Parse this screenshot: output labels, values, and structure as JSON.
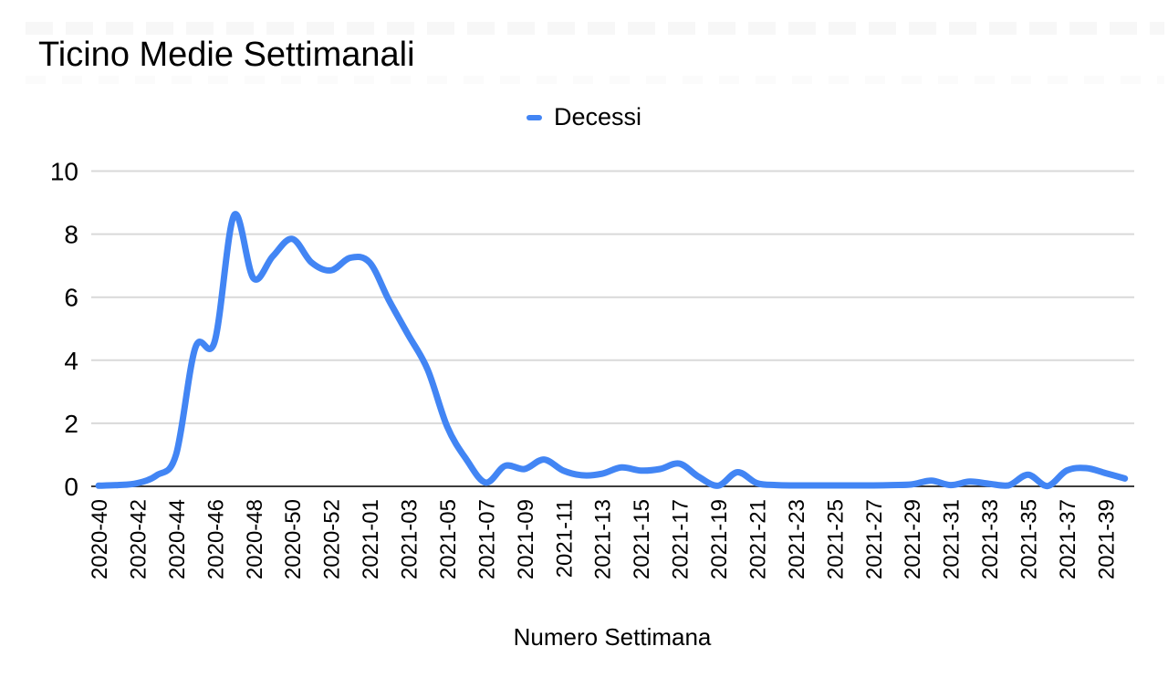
{
  "title": "Ticino Medie Settimanali",
  "legend": {
    "label": "Decessi",
    "marker_color": "#4285f4",
    "position": "top"
  },
  "x_axis_title": "Numero Settimana",
  "colors": {
    "line": "#4285f4",
    "grid": "#d9d9d9",
    "axis": "#3c3c3c",
    "text": "#000000",
    "background": "#ffffff"
  },
  "chart_data": {
    "type": "line",
    "smooth": true,
    "grid": true,
    "legend_position": "top",
    "title": "Ticino Medie Settimanali",
    "xlabel": "Numero Settimana",
    "ylabel": "",
    "ylim": [
      0,
      10
    ],
    "yticks": [
      0,
      2,
      4,
      6,
      8,
      10
    ],
    "x_tick_every": 2,
    "x": [
      "2020-40",
      "2020-41",
      "2020-42",
      "2020-43",
      "2020-44",
      "2020-45",
      "2020-46",
      "2020-47",
      "2020-48",
      "2020-49",
      "2020-50",
      "2020-51",
      "2020-52",
      "2020-53",
      "2021-01",
      "2021-02",
      "2021-03",
      "2021-04",
      "2021-05",
      "2021-06",
      "2021-07",
      "2021-08",
      "2021-09",
      "2021-10",
      "2021-11",
      "2021-12",
      "2021-13",
      "2021-14",
      "2021-15",
      "2021-16",
      "2021-17",
      "2021-18",
      "2021-19",
      "2021-20",
      "2021-21",
      "2021-22",
      "2021-23",
      "2021-24",
      "2021-25",
      "2021-26",
      "2021-27",
      "2021-28",
      "2021-29",
      "2021-30",
      "2021-31",
      "2021-32",
      "2021-33",
      "2021-34",
      "2021-35",
      "2021-36",
      "2021-37",
      "2021-38",
      "2021-39",
      "2021-40"
    ],
    "series": [
      {
        "name": "Decessi",
        "color": "#4285f4",
        "values": [
          0.02,
          0.04,
          0.1,
          0.35,
          1.0,
          4.4,
          4.6,
          8.6,
          6.6,
          7.3,
          7.85,
          7.1,
          6.85,
          7.25,
          7.1,
          5.9,
          4.8,
          3.7,
          1.9,
          0.85,
          0.12,
          0.65,
          0.55,
          0.85,
          0.5,
          0.35,
          0.4,
          0.6,
          0.5,
          0.55,
          0.72,
          0.3,
          0.02,
          0.45,
          0.1,
          0.04,
          0.03,
          0.03,
          0.03,
          0.03,
          0.03,
          0.04,
          0.06,
          0.18,
          0.04,
          0.15,
          0.08,
          0.03,
          0.37,
          0.01,
          0.5,
          0.58,
          0.42,
          0.25
        ]
      }
    ]
  }
}
